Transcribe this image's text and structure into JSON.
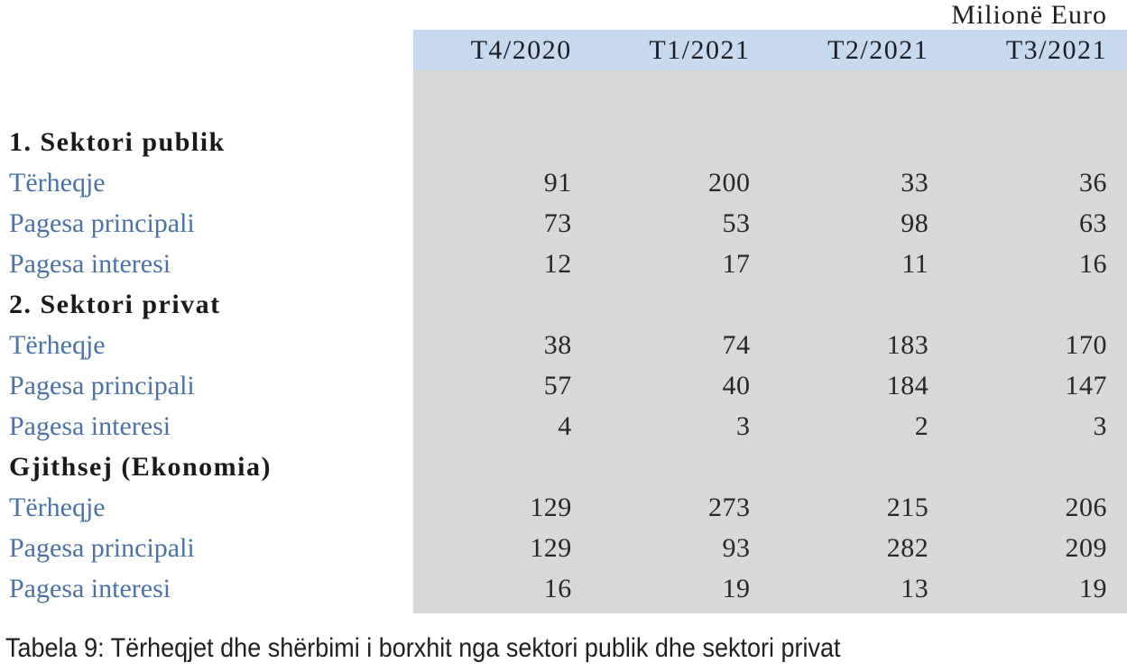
{
  "unit_label": "Milionë Euro",
  "caption": "Tabela 9: Tërheqjet dhe shërbimi i borxhit nga sektori publik dhe sektori privat",
  "colors": {
    "header_bg": "#c6d9ee",
    "body_bg": "#d8d8d8",
    "label_blue": "#4d72a2",
    "title_color": "#1a1a1a",
    "number_color": "#26262c",
    "caption_color": "#1f1f1f"
  },
  "table": {
    "columns": [
      "T4/2020",
      "T1/2021",
      "T2/2021",
      "T3/2021"
    ],
    "sections": [
      {
        "title": "1. Sektori publik",
        "rows": [
          {
            "label": "Tërheqje",
            "values": [
              "91",
              "200",
              "33",
              "36"
            ]
          },
          {
            "label": "Pagesa principali",
            "values": [
              "73",
              "53",
              "98",
              "63"
            ]
          },
          {
            "label": "Pagesa interesi",
            "values": [
              "12",
              "17",
              "11",
              "16"
            ]
          }
        ]
      },
      {
        "title": "2. Sektori privat",
        "rows": [
          {
            "label": "Tërheqje",
            "values": [
              "38",
              "74",
              "183",
              "170"
            ]
          },
          {
            "label": "Pagesa principali",
            "values": [
              "57",
              "40",
              "184",
              "147"
            ]
          },
          {
            "label": "Pagesa interesi",
            "values": [
              "4",
              "3",
              "2",
              "3"
            ]
          }
        ]
      },
      {
        "title": "Gjithsej (Ekonomia)",
        "rows": [
          {
            "label": "Tërheqje",
            "values": [
              "129",
              "273",
              "215",
              "206"
            ]
          },
          {
            "label": "Pagesa principali",
            "values": [
              "129",
              "93",
              "282",
              "209"
            ]
          },
          {
            "label": "Pagesa interesi",
            "values": [
              "16",
              "19",
              "13",
              "19"
            ]
          }
        ]
      }
    ]
  }
}
